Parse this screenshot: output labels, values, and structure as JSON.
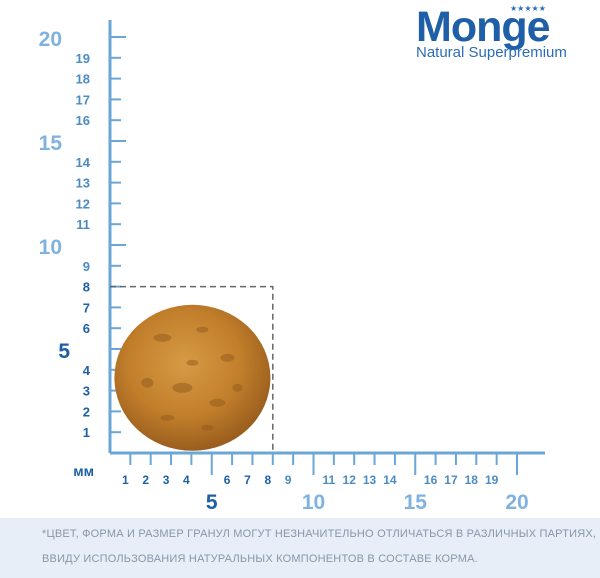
{
  "brand": {
    "name": "Monge",
    "tagline": "Natural Superpremium",
    "stars_icon": "crown-stars-icon"
  },
  "ruler": {
    "unit_label": "мм",
    "y_major_labels": [
      "5",
      "10",
      "15",
      "20"
    ],
    "y_minor_labels": [
      "1",
      "2",
      "3",
      "4",
      "6",
      "7",
      "8",
      "9",
      "11",
      "12",
      "13",
      "14",
      "16",
      "17",
      "18",
      "19"
    ],
    "x_major_labels": [
      "5",
      "10",
      "15",
      "20"
    ],
    "x_minor_labels": [
      "1",
      "2",
      "3",
      "4",
      "6",
      "7",
      "8",
      "9",
      "11",
      "12",
      "13",
      "14",
      "16",
      "17",
      "18",
      "19"
    ],
    "axis_color": "#6aa6d6",
    "minor_label_color": "#4b8cc4",
    "major_label_color": "#7fb2de",
    "near_label_color": "#1f5fa8"
  },
  "kibble": {
    "icon": "kibble-pellet-icon",
    "diameter_mm": 8,
    "color": "#c7862e"
  },
  "footer": {
    "line1": "*ЦВЕТ, ФОРМА И РАЗМЕР ГРАНУЛ МОГУТ НЕЗНАЧИТЕЛЬНО ОТЛИЧАТЬСЯ В РАЗЛИЧНЫХ ПАРТИЯХ,",
    "line2": "ВВИДУ ИСПОЛЬЗОВАНИЯ НАТУРАЛЬНЫХ КОМПОНЕНТОВ В СОСТАВЕ КОРМА."
  }
}
